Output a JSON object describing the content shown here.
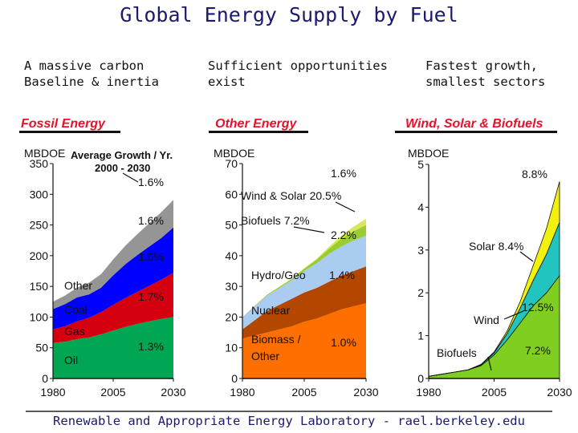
{
  "title": "Global Energy Supply by Fuel",
  "footer": "Renewable and Appropriate Energy Laboratory - rael.berkeley.edu",
  "columns": [
    {
      "subtitle": "A massive carbon\nBaseline & inertia",
      "section": "Fossil Energy",
      "unit": "MBDOE"
    },
    {
      "subtitle": "Sufficient opportunities\nexist",
      "section": "Other Energy",
      "unit": "MBDOE"
    },
    {
      "subtitle": "Fastest growth,\nsmallest sectors",
      "section": "Wind, Solar & Biofuels",
      "unit": "MBDOE"
    }
  ],
  "colors": {
    "oil": "#00a651",
    "gas": "#d40010",
    "coal": "#0000ff",
    "other_fossil": "#959595",
    "biomass": "#ff6f00",
    "nuclear": "#b34700",
    "hydro": "#a9ccf0",
    "biofuels_band": "#9acd32",
    "wind_solar_band": "#d8e85a",
    "biofuels": "#80ce20",
    "wind": "#22c4bf",
    "solar": "#f2f00e"
  },
  "chart_data": [
    {
      "type": "area",
      "stacked": true,
      "x": [
        1980,
        1985,
        1990,
        1995,
        2000,
        2005,
        2010,
        2015,
        2020,
        2025,
        2030
      ],
      "ylim": [
        0,
        350
      ],
      "yticks": [
        0,
        50,
        100,
        150,
        200,
        250,
        300,
        350
      ],
      "xticks": [
        1980,
        2005,
        2030
      ],
      "legend_annotation": "Average Growth / Yr.\n2000 - 2030",
      "series": [
        {
          "name": "Oil",
          "values": [
            58,
            60,
            64,
            67,
            72,
            78,
            84,
            89,
            93,
            97,
            100
          ],
          "growth": "1.3%"
        },
        {
          "name": "Gas",
          "values": [
            22,
            25,
            29,
            32,
            36,
            42,
            47,
            52,
            58,
            64,
            72
          ],
          "growth": "1.7%"
        },
        {
          "name": "Coal",
          "values": [
            33,
            36,
            39,
            38,
            40,
            48,
            55,
            60,
            64,
            68,
            74
          ],
          "growth": "1.6%"
        },
        {
          "name": "Other",
          "values": [
            12,
            14,
            16,
            19,
            22,
            26,
            30,
            34,
            38,
            42,
            45
          ],
          "growth": "1.6%"
        }
      ],
      "other_label_growth": "1.6%",
      "total_growth": "1.6%"
    },
    {
      "type": "area",
      "stacked": true,
      "x": [
        1980,
        1985,
        1990,
        1995,
        2000,
        2005,
        2010,
        2015,
        2020,
        2025,
        2030
      ],
      "ylim": [
        0,
        70
      ],
      "yticks": [
        0,
        10,
        20,
        30,
        40,
        50,
        60,
        70
      ],
      "xticks": [
        1980,
        2005,
        2030
      ],
      "series": [
        {
          "name": "Biomass / Other",
          "values": [
            13,
            14,
            15,
            16,
            17,
            18.5,
            19.5,
            21,
            22.5,
            23.5,
            24.5
          ],
          "growth": "1.0%"
        },
        {
          "name": "Nuclear",
          "values": [
            3,
            5,
            7,
            8,
            9,
            9.5,
            10,
            10.5,
            11,
            11.5,
            12
          ],
          "growth": "1.4%"
        },
        {
          "name": "Hydro/Geo",
          "values": [
            4,
            4.5,
            5,
            5.5,
            6,
            7,
            8,
            9,
            9.5,
            10,
            10
          ],
          "growth": "2.2%"
        },
        {
          "name": "Biofuels",
          "values": [
            0,
            0.2,
            0.3,
            0.4,
            0.5,
            0.8,
            1.2,
            1.8,
            2.5,
            3.0,
            3.5
          ],
          "growth": "7.2%"
        },
        {
          "name": "Wind & Solar",
          "values": [
            0,
            0,
            0,
            0,
            0.05,
            0.1,
            0.3,
            0.6,
            1.0,
            1.5,
            2.0
          ],
          "growth": "20.5%"
        }
      ],
      "total_growth": "1.6%"
    },
    {
      "type": "area",
      "stacked": true,
      "x": [
        1980,
        1985,
        1990,
        1995,
        2000,
        2005,
        2010,
        2015,
        2020,
        2025,
        2030
      ],
      "ylim": [
        0,
        5
      ],
      "yticks": [
        0,
        1,
        2,
        3,
        4,
        5
      ],
      "xticks": [
        1980,
        2005,
        2030
      ],
      "series": [
        {
          "name": "Biofuels",
          "values": [
            0.05,
            0.1,
            0.15,
            0.2,
            0.3,
            0.55,
            0.9,
            1.3,
            1.7,
            2.0,
            2.4
          ],
          "growth": "7.2%"
        },
        {
          "name": "Wind",
          "values": [
            0,
            0,
            0,
            0,
            0.02,
            0.05,
            0.15,
            0.35,
            0.6,
            0.9,
            1.25
          ],
          "growth": "12.5%"
        },
        {
          "name": "Solar",
          "values": [
            0,
            0,
            0,
            0,
            0.01,
            0.02,
            0.06,
            0.15,
            0.35,
            0.6,
            0.95
          ],
          "growth": "8.4%"
        }
      ],
      "total_growth": "8.8%"
    }
  ]
}
